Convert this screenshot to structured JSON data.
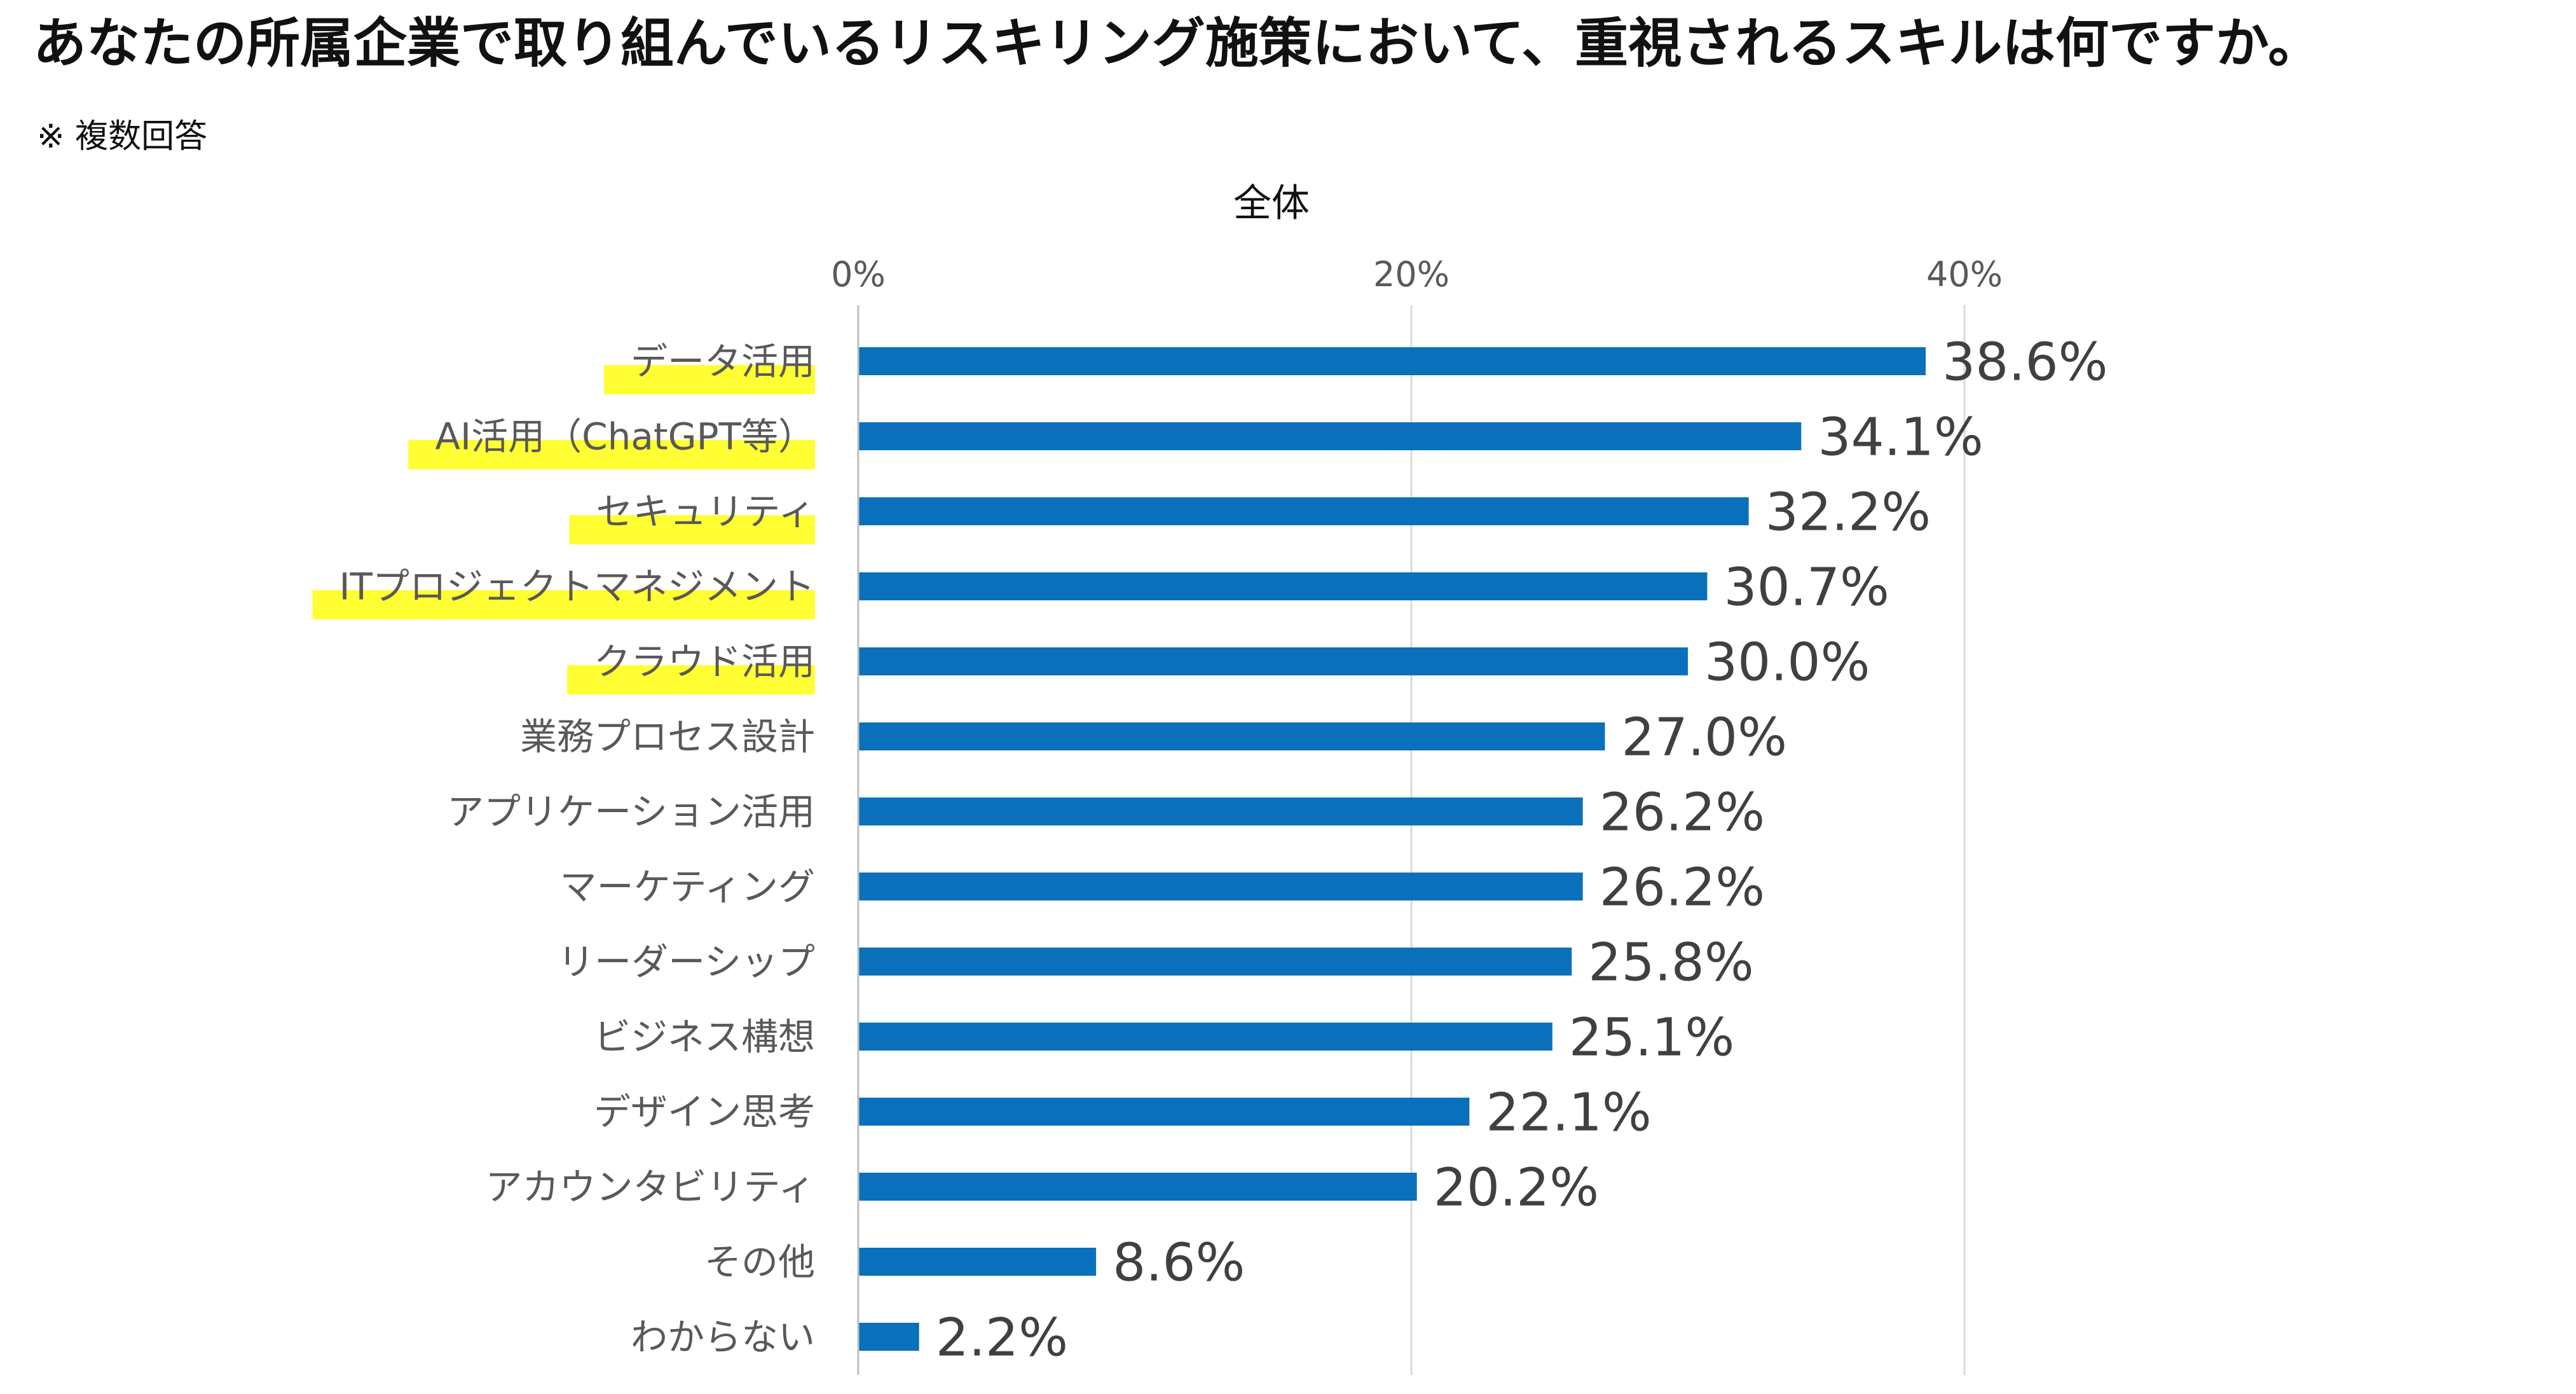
{
  "page": {
    "title": "あなたの所属企業で取り組んでいるリスキリング施策において、重視されるスキルは何ですか。",
    "note": "※ 複数回答"
  },
  "chart_data": {
    "type": "bar",
    "orientation": "horizontal",
    "title": "全体",
    "unit": "%",
    "xlim": [
      0,
      40
    ],
    "xticks": [
      0,
      20,
      40
    ],
    "xtick_labels": [
      "0%",
      "20%",
      "40%"
    ],
    "grid": true,
    "categories": [
      "データ活用",
      "AI活用（ChatGPT等）",
      "セキュリティ",
      "ITプロジェクトマネジメント",
      "クラウド活用",
      "業務プロセス設計",
      "アプリケーション活用",
      "マーケティング",
      "リーダーシップ",
      "ビジネス構想",
      "デザイン思考",
      "アカウンタビリティ",
      "その他",
      "わからない"
    ],
    "values": [
      38.6,
      34.1,
      32.2,
      30.7,
      30.0,
      27.0,
      26.2,
      26.2,
      25.8,
      25.1,
      22.1,
      20.2,
      8.6,
      2.2
    ],
    "value_labels": [
      "38.6%",
      "34.1%",
      "32.2%",
      "30.7%",
      "30.0%",
      "27.0%",
      "26.2%",
      "26.2%",
      "25.8%",
      "25.1%",
      "22.1%",
      "20.2%",
      "8.6%",
      "2.2%"
    ],
    "highlighted_categories": [
      "データ活用",
      "AI活用（ChatGPT等）",
      "セキュリティ",
      "ITプロジェクトマネジメント",
      "クラウド活用"
    ],
    "colors": {
      "bar": "#0A70BC",
      "highlight": "#FFFF33",
      "grid": "#D9D9D9",
      "axis": "#BFBFBF",
      "category_text": "#595959",
      "value_text": "#404040",
      "tick_text": "#595959"
    }
  }
}
